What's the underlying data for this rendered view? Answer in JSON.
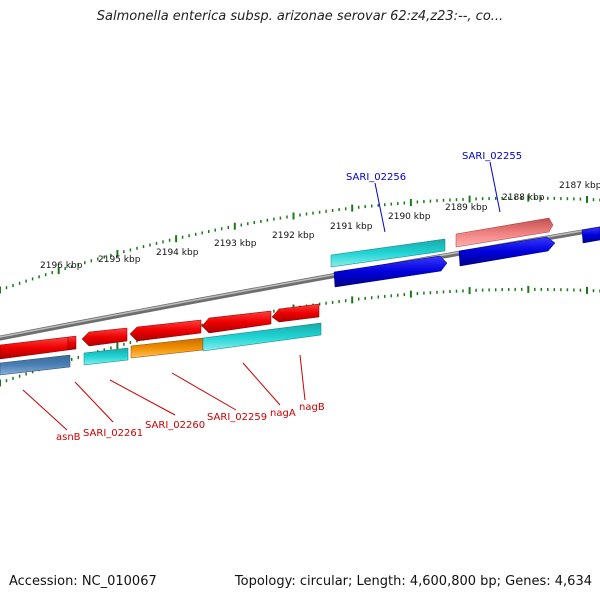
{
  "header": {
    "title": "Salmonella enterica subsp. arizonae serovar 62:z4,z23:--, co..."
  },
  "footer": {
    "accession": "Accession: NC_010067",
    "summary": "Topology: circular; Length: 4,600,800 bp; Genes: 4,634"
  },
  "ruler": {
    "labels": [
      "2196 kbp",
      "2195 kbp",
      "2194 kbp",
      "2193 kbp",
      "2192 kbp",
      "2191 kbp",
      "2190 kbp",
      "2189 kbp",
      "2188 kbp",
      "2187 kbp"
    ]
  },
  "callouts": {
    "top": [
      "SARI_02256",
      "SARI_02255"
    ],
    "bottom": [
      "asnB",
      "SARI_02261",
      "SARI_02260",
      "SARI_02259",
      "nagA",
      "nagB"
    ]
  },
  "colors": {
    "forward_cds": "#0000dd",
    "reverse_cds": "#dd0000",
    "teal": "#1fc8c8",
    "salmon": "#ee8080",
    "orange": "#ee8800",
    "steel": "#4a7db0",
    "tick": "#1a7a1a",
    "backbone": "#808080"
  }
}
